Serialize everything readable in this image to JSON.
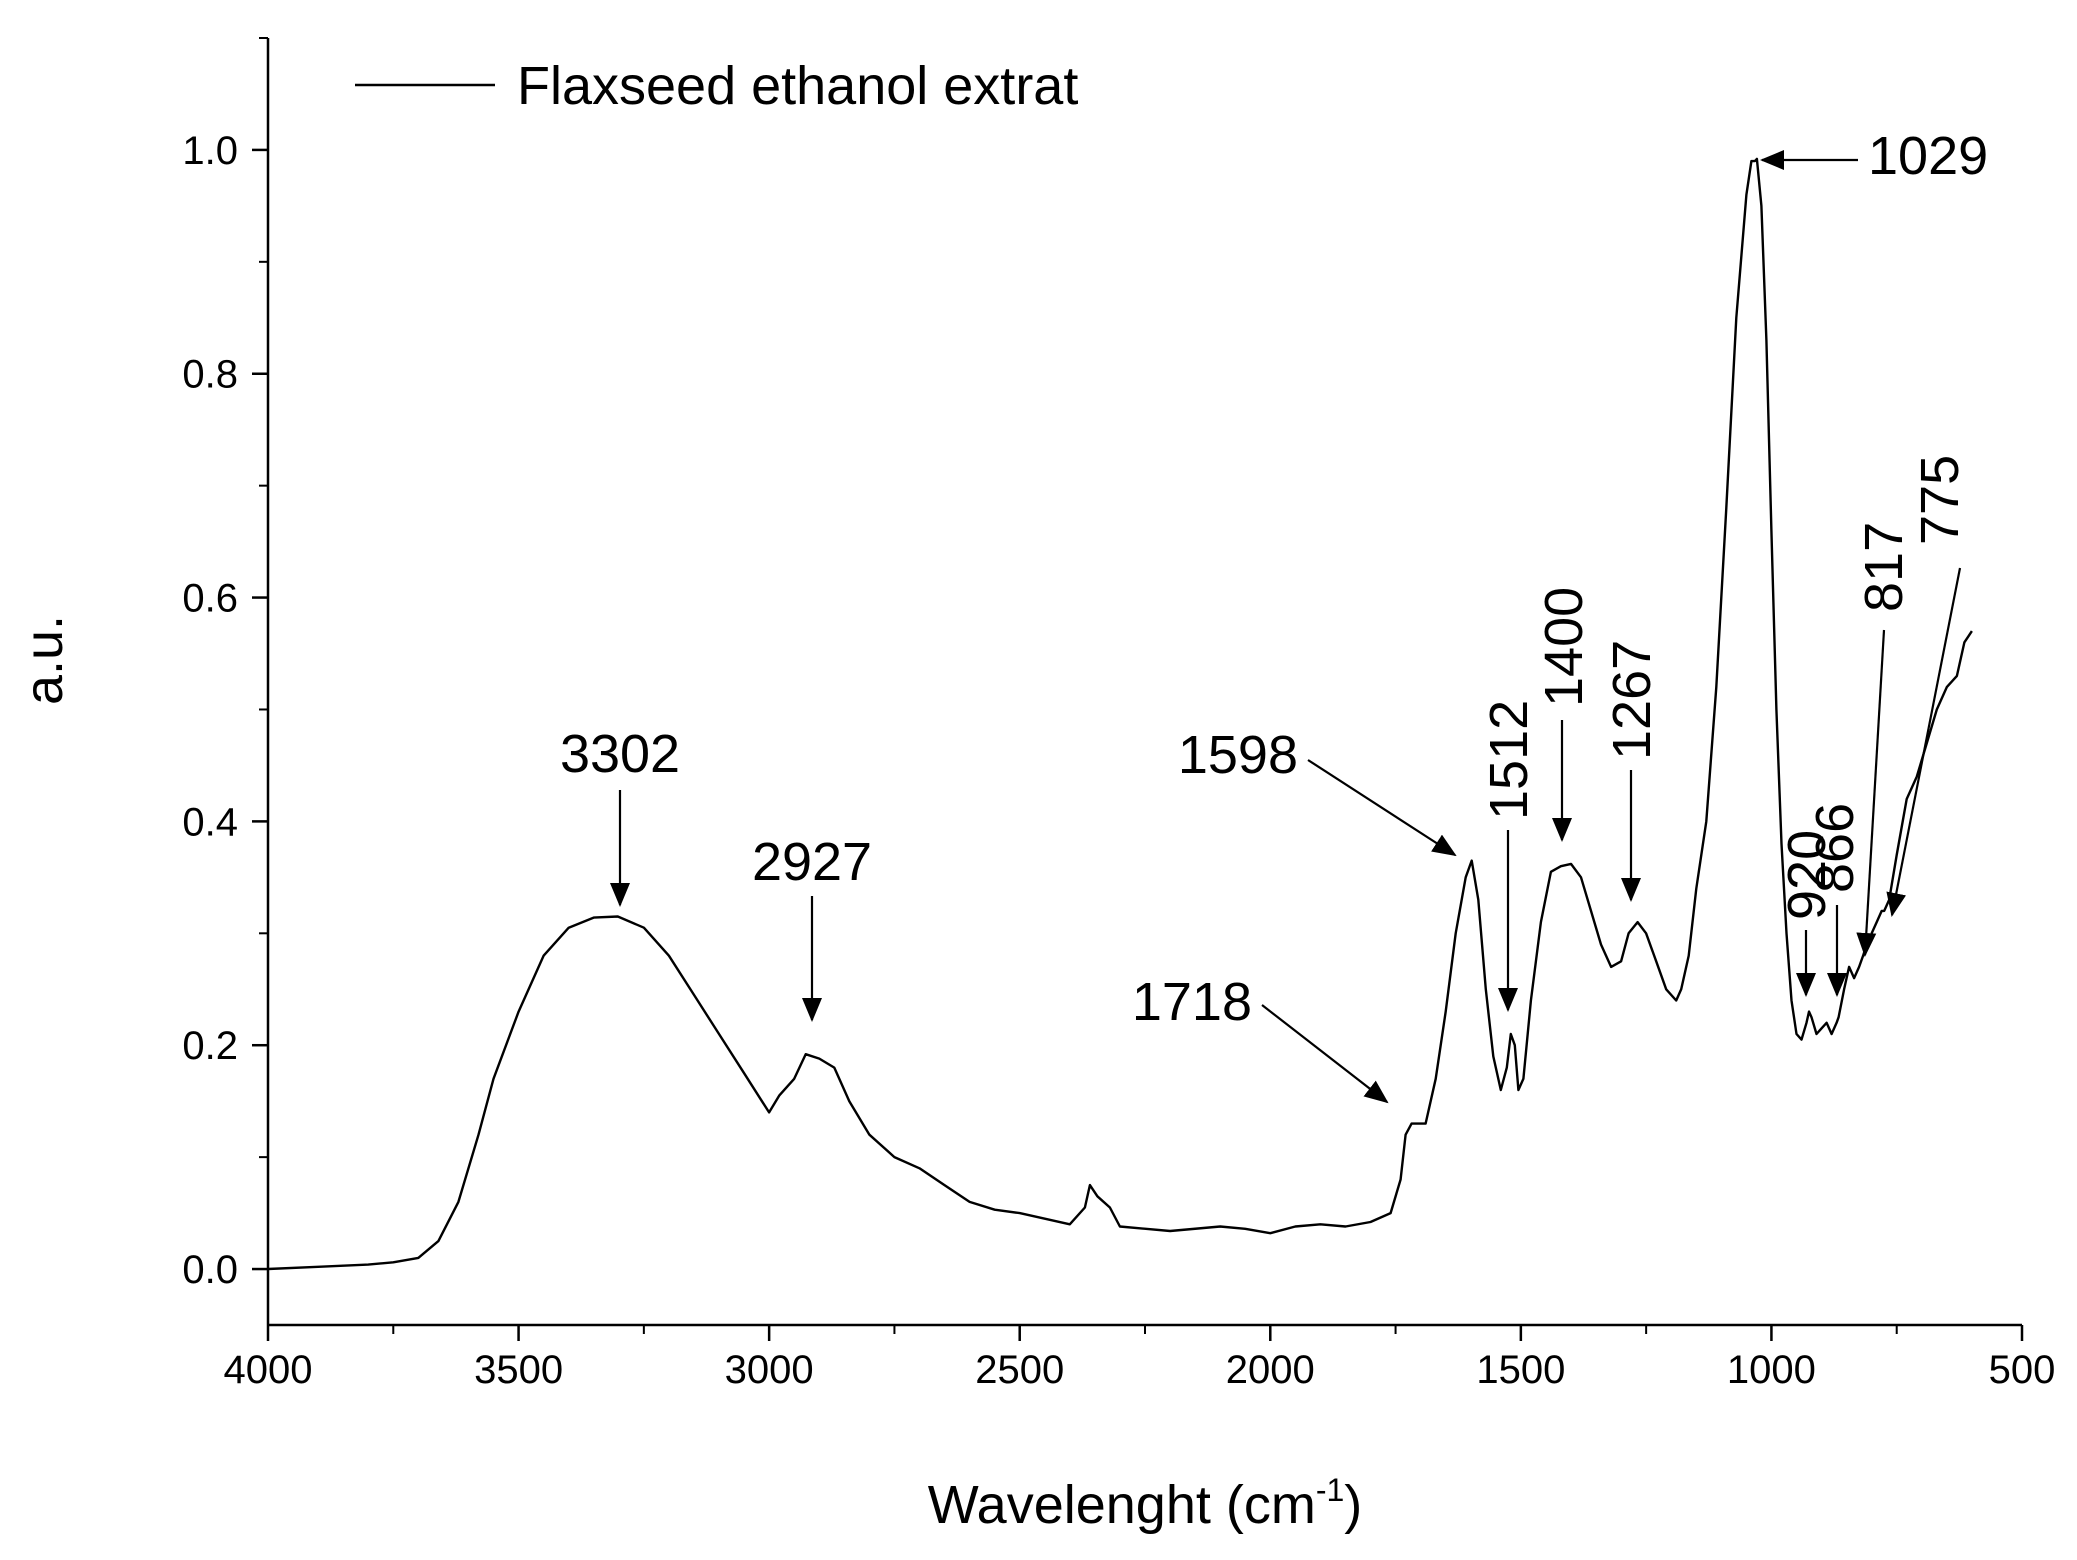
{
  "chart_data": {
    "type": "line",
    "title": "",
    "xlabel": "Wavelenght (cm",
    "xlabel_superscript": "-1",
    "xlabel_suffix": ")",
    "ylabel": "a.u.",
    "xlim": [
      4000,
      500
    ],
    "ylim": [
      -0.05,
      1.1
    ],
    "x_reversed": true,
    "x_ticks": [
      4000,
      3500,
      3000,
      2500,
      2000,
      1500,
      1000,
      500
    ],
    "x_tick_labels": [
      "4000",
      "3500",
      "3000",
      "2500",
      "2000",
      "1500",
      "1000",
      "500"
    ],
    "y_ticks": [
      0.0,
      0.2,
      0.4,
      0.6,
      0.8,
      1.0
    ],
    "y_tick_labels": [
      "0.0",
      "0.2",
      "0.4",
      "0.6",
      "0.8",
      "1.0"
    ],
    "grid": false,
    "legend": {
      "position": "top-left",
      "entries": [
        "Flaxseed ethanol extrat"
      ]
    },
    "color": "#000000",
    "series": [
      {
        "name": "Flaxseed ethanol extrat",
        "x": [
          4000,
          3900,
          3800,
          3750,
          3700,
          3660,
          3620,
          3580,
          3550,
          3500,
          3450,
          3400,
          3350,
          3302,
          3250,
          3200,
          3150,
          3100,
          3050,
          3000,
          2980,
          2950,
          2927,
          2900,
          2870,
          2840,
          2800,
          2750,
          2700,
          2650,
          2600,
          2550,
          2500,
          2450,
          2400,
          2370,
          2360,
          2345,
          2320,
          2300,
          2200,
          2100,
          2050,
          2000,
          1950,
          1900,
          1850,
          1800,
          1760,
          1740,
          1730,
          1718,
          1705,
          1690,
          1670,
          1650,
          1630,
          1610,
          1598,
          1585,
          1570,
          1555,
          1540,
          1528,
          1520,
          1512,
          1505,
          1495,
          1480,
          1460,
          1440,
          1420,
          1400,
          1380,
          1360,
          1340,
          1320,
          1300,
          1285,
          1267,
          1250,
          1230,
          1210,
          1190,
          1180,
          1165,
          1150,
          1130,
          1110,
          1090,
          1070,
          1050,
          1040,
          1033,
          1029,
          1020,
          1010,
          1000,
          990,
          980,
          970,
          960,
          950,
          940,
          930,
          925,
          920,
          910,
          900,
          890,
          880,
          870,
          866,
          855,
          845,
          835,
          825,
          817,
          810,
          800,
          790,
          780,
          775,
          765,
          750,
          730,
          710,
          690,
          670,
          650,
          630,
          615,
          600
        ],
        "y": [
          0.0,
          0.002,
          0.004,
          0.006,
          0.01,
          0.025,
          0.06,
          0.12,
          0.17,
          0.23,
          0.28,
          0.305,
          0.314,
          0.315,
          0.305,
          0.28,
          0.245,
          0.21,
          0.175,
          0.14,
          0.155,
          0.17,
          0.192,
          0.188,
          0.18,
          0.15,
          0.12,
          0.1,
          0.09,
          0.075,
          0.06,
          0.053,
          0.05,
          0.045,
          0.04,
          0.055,
          0.075,
          0.065,
          0.055,
          0.038,
          0.034,
          0.038,
          0.036,
          0.032,
          0.038,
          0.04,
          0.038,
          0.042,
          0.05,
          0.08,
          0.12,
          0.13,
          0.13,
          0.13,
          0.17,
          0.23,
          0.3,
          0.35,
          0.365,
          0.33,
          0.25,
          0.19,
          0.16,
          0.18,
          0.21,
          0.2,
          0.16,
          0.17,
          0.24,
          0.31,
          0.355,
          0.36,
          0.362,
          0.35,
          0.32,
          0.29,
          0.27,
          0.275,
          0.3,
          0.31,
          0.3,
          0.275,
          0.25,
          0.24,
          0.25,
          0.28,
          0.34,
          0.4,
          0.52,
          0.68,
          0.85,
          0.96,
          0.99,
          0.99,
          0.992,
          0.95,
          0.83,
          0.66,
          0.5,
          0.38,
          0.3,
          0.24,
          0.21,
          0.205,
          0.22,
          0.23,
          0.225,
          0.21,
          0.215,
          0.22,
          0.21,
          0.22,
          0.225,
          0.25,
          0.27,
          0.26,
          0.27,
          0.28,
          0.29,
          0.3,
          0.31,
          0.32,
          0.32,
          0.33,
          0.37,
          0.42,
          0.44,
          0.47,
          0.5,
          0.52,
          0.53,
          0.56,
          0.57
        ]
      }
    ],
    "annotations": [
      {
        "label": "3302",
        "x": 3302,
        "y": 0.315,
        "rotated": false
      },
      {
        "label": "2927",
        "x": 2927,
        "y": 0.192,
        "rotated": false
      },
      {
        "label": "1718",
        "x": 1718,
        "y": 0.13,
        "rotated": false
      },
      {
        "label": "1598",
        "x": 1598,
        "y": 0.365,
        "rotated": false
      },
      {
        "label": "1512",
        "x": 1512,
        "y": 0.2,
        "rotated": true
      },
      {
        "label": "1400",
        "x": 1400,
        "y": 0.362,
        "rotated": true
      },
      {
        "label": "1267",
        "x": 1267,
        "y": 0.31,
        "rotated": true
      },
      {
        "label": "1029",
        "x": 1029,
        "y": 0.992,
        "rotated": false
      },
      {
        "label": "920",
        "x": 920,
        "y": 0.225,
        "rotated": true
      },
      {
        "label": "866",
        "x": 866,
        "y": 0.22,
        "rotated": true
      },
      {
        "label": "817",
        "x": 817,
        "y": 0.27,
        "rotated": true
      },
      {
        "label": "775",
        "x": 775,
        "y": 0.32,
        "rotated": true
      }
    ]
  }
}
